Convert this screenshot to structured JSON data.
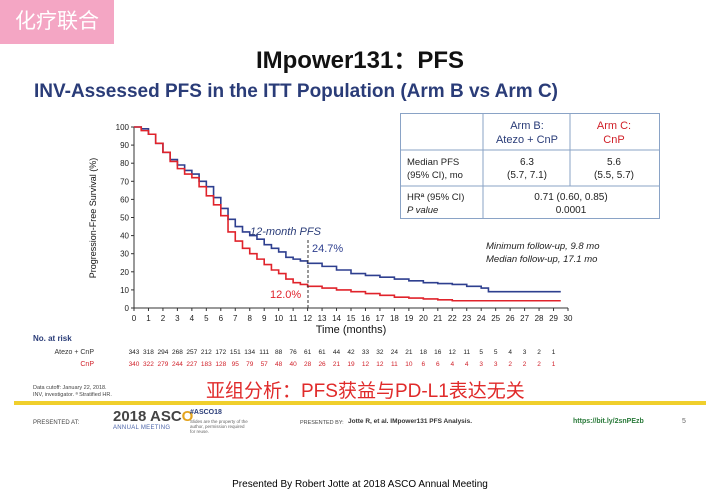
{
  "tag": "化疗联合",
  "slide_title": "IMpower131：PFS",
  "chart_title": "INV-Assessed PFS in the ITT Population (Arm B vs Arm C)",
  "table": {
    "arm_b": [
      "Arm B:",
      "Atezo + CnP"
    ],
    "arm_c": [
      "Arm C:",
      "CnP"
    ],
    "median_label": [
      "Median PFS",
      "(95% CI), mo"
    ],
    "median_b": [
      "6.3",
      "(5.7, 7.1)"
    ],
    "median_c": [
      "5.6",
      "(5.5, 5.7)"
    ],
    "hr_label": [
      "HRª (95% CI)",
      "P value"
    ],
    "hr_value": [
      "0.71 (0.60, 0.85)",
      "0.0001"
    ]
  },
  "followup": [
    "Minimum follow-up, 9.8 mo",
    "Median follow-up, 17.1 mo"
  ],
  "annotations": {
    "label_12m": "12-month PFS",
    "arm_b_12m": "24.7%",
    "arm_c_12m": "12.0%"
  },
  "risk": {
    "title": "No. at risk",
    "rows": [
      {
        "label": "Atezo + CnP",
        "values": [
          "343",
          "318",
          "294",
          "268",
          "257",
          "212",
          "172",
          "151",
          "134",
          "111",
          "88",
          "76",
          "61",
          "61",
          "44",
          "42",
          "33",
          "32",
          "24",
          "21",
          "18",
          "16",
          "12",
          "11",
          "5",
          "5",
          "4",
          "3",
          "2",
          "1",
          ""
        ]
      },
      {
        "label": "CnP",
        "values": [
          "340",
          "322",
          "279",
          "244",
          "227",
          "183",
          "128",
          "95",
          "79",
          "57",
          "48",
          "40",
          "28",
          "26",
          "21",
          "19",
          "12",
          "12",
          "11",
          "10",
          "6",
          "6",
          "4",
          "4",
          "3",
          "3",
          "2",
          "2",
          "2",
          "1",
          ""
        ]
      }
    ]
  },
  "cutoff": [
    "Data cutoff: January 22, 2018.",
    "INV, investigator. ª Stratified HR."
  ],
  "subtitle": "亚组分析：PFS获益与PD-L1表达无关",
  "footer": {
    "presented_at": "PRESENTED AT:",
    "asco_year": "2018",
    "asco_word": "ASC",
    "asco_o": "O",
    "asco_meeting": "ANNUAL MEETING",
    "hashtag": "#ASCO18",
    "hashtag_sub": "Slides are the property of the author, permission required for reuse.",
    "presented_by": "PRESENTED BY:",
    "author": "Jotte R, et al. IMpower131 PFS Analysis.",
    "url": "https://bit.ly/2snPEzb",
    "page": "5"
  },
  "presented_line": "Presented By Robert Jotte at 2018 ASCO Annual Meeting",
  "chart_data": {
    "type": "line",
    "xlabel": "Time (months)",
    "ylabel": "Progression-Free Survival (%)",
    "xlim": [
      0,
      30
    ],
    "ylim": [
      0,
      100
    ],
    "xticks": [
      0,
      1,
      2,
      3,
      4,
      5,
      6,
      7,
      8,
      9,
      10,
      11,
      12,
      13,
      14,
      15,
      16,
      17,
      18,
      19,
      20,
      21,
      22,
      23,
      24,
      25,
      26,
      27,
      28,
      29,
      30
    ],
    "yticks": [
      0,
      10,
      20,
      30,
      40,
      50,
      60,
      70,
      80,
      90,
      100
    ],
    "series": [
      {
        "name": "Atezo + CnP",
        "color": "#2e3f8f",
        "x": [
          0,
          0.5,
          1,
          1.5,
          2,
          2.5,
          3,
          3.5,
          4,
          4.5,
          5,
          5.5,
          6,
          6.5,
          7,
          7.5,
          8,
          8.5,
          9,
          9.5,
          10,
          10.5,
          11,
          11.5,
          12,
          13,
          14,
          15,
          16,
          17,
          18,
          19,
          20,
          21,
          22,
          23,
          24,
          24.5,
          26,
          28,
          29.5
        ],
        "y": [
          100,
          99,
          96,
          91,
          86,
          82,
          79,
          76,
          74,
          70,
          67,
          61,
          55,
          49,
          45,
          42,
          40,
          38,
          35,
          33,
          31,
          28,
          27,
          26,
          24.7,
          23,
          21,
          19,
          18,
          17,
          16,
          15,
          14,
          13.5,
          13,
          12,
          11,
          9,
          9,
          9,
          9
        ]
      },
      {
        "name": "CnP",
        "color": "#e0232b",
        "x": [
          0,
          0.5,
          1,
          1.5,
          2,
          2.5,
          3,
          3.5,
          4,
          4.5,
          5,
          5.5,
          6,
          6.5,
          7,
          7.5,
          8,
          8.5,
          9,
          9.5,
          10,
          10.5,
          11,
          11.5,
          12,
          13,
          14,
          15,
          16,
          17,
          18,
          19,
          20,
          21,
          22,
          23,
          24,
          25,
          26,
          28,
          29.5
        ],
        "y": [
          100,
          98,
          96,
          91,
          86,
          81,
          77,
          74,
          72,
          67,
          62,
          57,
          51,
          42,
          37,
          33,
          30,
          27,
          24,
          21,
          19,
          16,
          14,
          13,
          12,
          11,
          10,
          9,
          8,
          7,
          6,
          5.5,
          5,
          4.5,
          4,
          4,
          4,
          4,
          4,
          4,
          4
        ]
      }
    ]
  }
}
